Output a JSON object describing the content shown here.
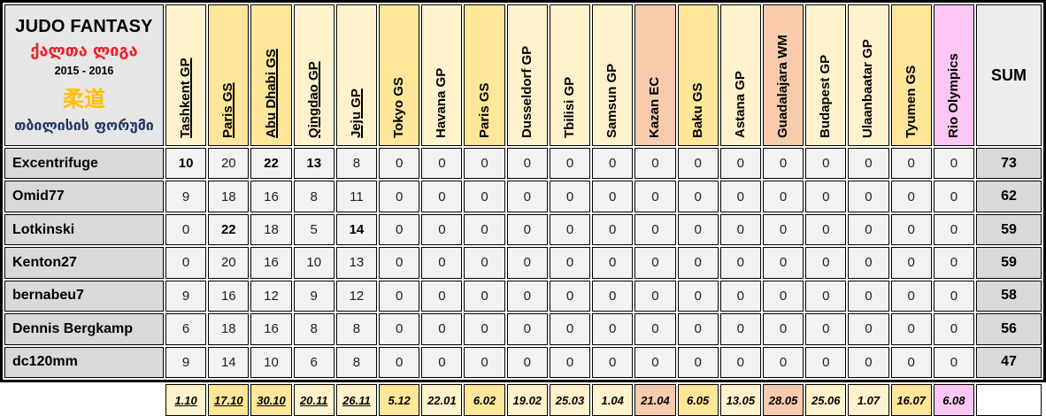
{
  "title_block": {
    "title": "JUDO FANTASY",
    "league": "ქალთა ლიგა",
    "season": "2015 - 2016",
    "kanji": "柔道",
    "forum": "თბილისის ფორუმი"
  },
  "sum_header": "SUM",
  "theme": {
    "gp_color": "#FFF2CC",
    "gs_color": "#FFE699",
    "championship_color": "#F8CBAD",
    "olympics_color": "#FBC6F3",
    "title_bg": "#E7E6E6",
    "name_bg": "#D9D9D9",
    "sum_header_bg": "#ECECEC",
    "sum_value_bg": "#D9D9D9",
    "score_bg": "#F2F2F2",
    "date_empty_bg": "#FFFFFF",
    "league_text_color": "#F01E28",
    "kanji_text_color": "#FFC000",
    "forum_text_color": "#1F3864",
    "border_color": "#000000"
  },
  "columns": [
    {
      "label": "Tashkent GP",
      "type": "gp",
      "date": "1.10",
      "played": true
    },
    {
      "label": "Paris GS",
      "type": "gs",
      "date": "17.10",
      "played": true
    },
    {
      "label": "Abu Dhabi GS",
      "type": "gs",
      "date": "30.10",
      "played": true
    },
    {
      "label": "Qingdao GP",
      "type": "gp",
      "date": "20.11",
      "played": true
    },
    {
      "label": "Jeju GP",
      "type": "gp",
      "date": "26.11",
      "played": true
    },
    {
      "label": "Tokyo GS",
      "type": "gs",
      "date": "5.12",
      "played": false
    },
    {
      "label": "Havana GP",
      "type": "gp",
      "date": "22.01",
      "played": false
    },
    {
      "label": "Paris GS",
      "type": "gs",
      "date": "6.02",
      "played": false
    },
    {
      "label": "Dusseldorf GP",
      "type": "gp",
      "date": "19.02",
      "played": false
    },
    {
      "label": "Tbilisi GP",
      "type": "gp",
      "date": "25.03",
      "played": false
    },
    {
      "label": "Samsun GP",
      "type": "gp",
      "date": "1.04",
      "played": false
    },
    {
      "label": "Kazan EC",
      "type": "championship",
      "date": "21.04",
      "played": false
    },
    {
      "label": "Baku GS",
      "type": "gs",
      "date": "6.05",
      "played": false
    },
    {
      "label": "Astana GP",
      "type": "gp",
      "date": "13.05",
      "played": false
    },
    {
      "label": "Guadalajara WM",
      "type": "championship",
      "date": "28.05",
      "played": false
    },
    {
      "label": "Budapest GP",
      "type": "gp",
      "date": "25.06",
      "played": false
    },
    {
      "label": "Ulaanbaatar GP",
      "type": "gp",
      "date": "1.07",
      "played": false
    },
    {
      "label": "Tyumen GS",
      "type": "gs",
      "date": "16.07",
      "played": false
    },
    {
      "label": "Rio Olympics",
      "type": "olympics",
      "date": "6.08",
      "played": false
    }
  ],
  "players": [
    {
      "name": "Excentrifuge",
      "scores": [
        10,
        20,
        22,
        13,
        8,
        0,
        0,
        0,
        0,
        0,
        0,
        0,
        0,
        0,
        0,
        0,
        0,
        0,
        0
      ],
      "bold_columns": [
        0,
        2,
        3
      ],
      "sum": 73
    },
    {
      "name": "Omid77",
      "scores": [
        9,
        18,
        16,
        8,
        11,
        0,
        0,
        0,
        0,
        0,
        0,
        0,
        0,
        0,
        0,
        0,
        0,
        0,
        0
      ],
      "bold_columns": [],
      "sum": 62
    },
    {
      "name": "Lotkinski",
      "scores": [
        0,
        22,
        18,
        5,
        14,
        0,
        0,
        0,
        0,
        0,
        0,
        0,
        0,
        0,
        0,
        0,
        0,
        0,
        0
      ],
      "bold_columns": [
        1,
        4
      ],
      "sum": 59
    },
    {
      "name": "Kenton27",
      "scores": [
        0,
        20,
        16,
        10,
        13,
        0,
        0,
        0,
        0,
        0,
        0,
        0,
        0,
        0,
        0,
        0,
        0,
        0,
        0
      ],
      "bold_columns": [],
      "sum": 59
    },
    {
      "name": "bernabeu7",
      "scores": [
        9,
        16,
        12,
        9,
        12,
        0,
        0,
        0,
        0,
        0,
        0,
        0,
        0,
        0,
        0,
        0,
        0,
        0,
        0
      ],
      "bold_columns": [],
      "sum": 58
    },
    {
      "name": "Dennis Bergkamp",
      "scores": [
        6,
        18,
        16,
        8,
        8,
        0,
        0,
        0,
        0,
        0,
        0,
        0,
        0,
        0,
        0,
        0,
        0,
        0,
        0
      ],
      "bold_columns": [],
      "sum": 56
    },
    {
      "name": "dc120mm",
      "scores": [
        9,
        14,
        10,
        6,
        8,
        0,
        0,
        0,
        0,
        0,
        0,
        0,
        0,
        0,
        0,
        0,
        0,
        0,
        0
      ],
      "bold_columns": [],
      "sum": 47
    }
  ]
}
